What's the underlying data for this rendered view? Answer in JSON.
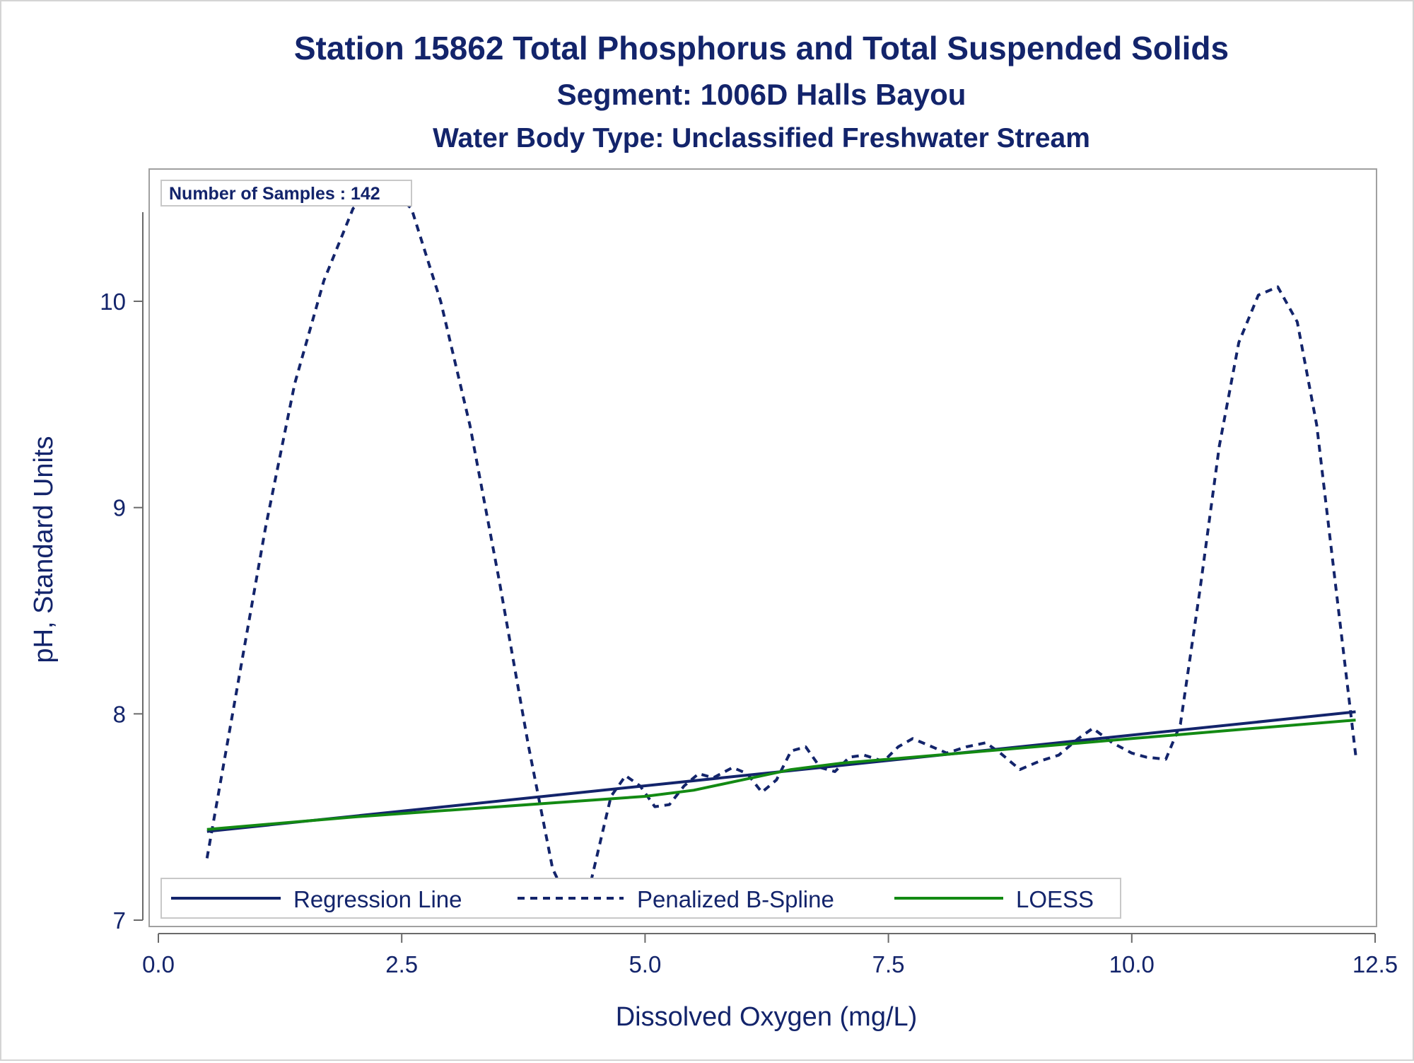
{
  "chart_data": {
    "type": "line",
    "title": "Station 15862  Total Phosphorus and Total Suspended Solids",
    "subtitle": "Segment: 1006D  Halls Bayou",
    "subtitle2": "Water Body Type: Unclassified Freshwater Stream",
    "xlabel": "Dissolved Oxygen (mg/L)",
    "ylabel": "pH, Standard Units",
    "xlim": [
      0,
      12.5
    ],
    "ylim": [
      6.95,
      10.6
    ],
    "xticks": [
      0,
      2.5,
      5,
      7.5,
      10,
      12.5
    ],
    "xtick_labels": [
      "0.0",
      "2.5",
      "5.0",
      "7.5",
      "10.0",
      "12.5"
    ],
    "yticks": [
      7,
      8,
      9,
      10
    ],
    "ytick_labels": [
      "7",
      "8",
      "9",
      "10"
    ],
    "inset_label": "Number of Samples : 142",
    "legend_position": "bottom-inside",
    "series": [
      {
        "name": "Regression Line",
        "style": "solid",
        "color": "#13246b",
        "points": [
          [
            0.5,
            7.43
          ],
          [
            12.3,
            8.01
          ]
        ]
      },
      {
        "name": "Penalized B-Spline",
        "style": "dashed",
        "color": "#13246b",
        "points": [
          [
            0.5,
            7.3
          ],
          [
            0.8,
            8.1
          ],
          [
            1.1,
            8.9
          ],
          [
            1.4,
            9.6
          ],
          [
            1.7,
            10.1
          ],
          [
            2.0,
            10.45
          ],
          [
            2.3,
            10.58
          ],
          [
            2.6,
            10.45
          ],
          [
            2.9,
            10.0
          ],
          [
            3.2,
            9.4
          ],
          [
            3.5,
            8.65
          ],
          [
            3.8,
            7.85
          ],
          [
            4.05,
            7.25
          ],
          [
            4.25,
            7.05
          ],
          [
            4.45,
            7.2
          ],
          [
            4.65,
            7.6
          ],
          [
            4.8,
            7.7
          ],
          [
            4.95,
            7.65
          ],
          [
            5.1,
            7.55
          ],
          [
            5.25,
            7.56
          ],
          [
            5.4,
            7.65
          ],
          [
            5.55,
            7.71
          ],
          [
            5.7,
            7.69
          ],
          [
            5.9,
            7.74
          ],
          [
            6.05,
            7.71
          ],
          [
            6.2,
            7.62
          ],
          [
            6.35,
            7.68
          ],
          [
            6.5,
            7.82
          ],
          [
            6.65,
            7.84
          ],
          [
            6.8,
            7.74
          ],
          [
            6.95,
            7.72
          ],
          [
            7.1,
            7.79
          ],
          [
            7.25,
            7.8
          ],
          [
            7.45,
            7.77
          ],
          [
            7.6,
            7.84
          ],
          [
            7.75,
            7.88
          ],
          [
            7.9,
            7.85
          ],
          [
            8.1,
            7.81
          ],
          [
            8.3,
            7.84
          ],
          [
            8.5,
            7.86
          ],
          [
            8.65,
            7.81
          ],
          [
            8.85,
            7.73
          ],
          [
            9.05,
            7.77
          ],
          [
            9.25,
            7.8
          ],
          [
            9.45,
            7.88
          ],
          [
            9.6,
            7.93
          ],
          [
            9.8,
            7.86
          ],
          [
            10.0,
            7.81
          ],
          [
            10.15,
            7.79
          ],
          [
            10.35,
            7.78
          ],
          [
            10.5,
            7.95
          ],
          [
            10.7,
            8.6
          ],
          [
            10.9,
            9.3
          ],
          [
            11.1,
            9.8
          ],
          [
            11.3,
            10.03
          ],
          [
            11.5,
            10.07
          ],
          [
            11.7,
            9.9
          ],
          [
            11.9,
            9.4
          ],
          [
            12.1,
            8.6
          ],
          [
            12.3,
            7.8
          ]
        ]
      },
      {
        "name": "LOESS",
        "style": "solid",
        "color": "#138a13",
        "points": [
          [
            0.5,
            7.44
          ],
          [
            2.0,
            7.5
          ],
          [
            3.5,
            7.55
          ],
          [
            5.0,
            7.6
          ],
          [
            5.5,
            7.63
          ],
          [
            6.0,
            7.68
          ],
          [
            6.5,
            7.73
          ],
          [
            7.0,
            7.76
          ],
          [
            8.0,
            7.8
          ],
          [
            9.0,
            7.84
          ],
          [
            10.0,
            7.88
          ],
          [
            11.0,
            7.92
          ],
          [
            12.3,
            7.97
          ]
        ]
      }
    ]
  }
}
